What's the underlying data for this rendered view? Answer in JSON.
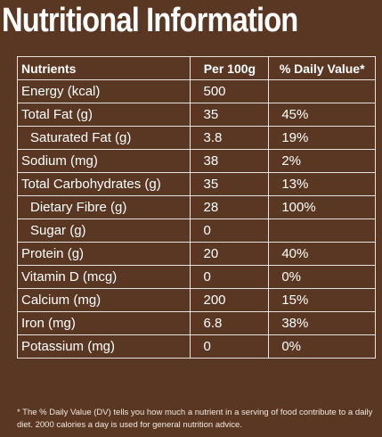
{
  "title": "Nutritional Information",
  "headers": {
    "nutrients": "Nutrients",
    "per100g": "Per 100g",
    "dv": "% Daily Value*"
  },
  "rows": [
    {
      "name": "Energy (kcal)",
      "per": "500",
      "dv": "",
      "sub": false
    },
    {
      "name": "Total Fat (g)",
      "per": "35",
      "dv": "45%",
      "sub": false
    },
    {
      "name": "Saturated Fat (g)",
      "per": "3.8",
      "dv": "19%",
      "sub": true
    },
    {
      "name": "Sodium (mg)",
      "per": "38",
      "dv": "2%",
      "sub": false
    },
    {
      "name": "Total Carbohydrates (g)",
      "per": "35",
      "dv": "13%",
      "sub": false
    },
    {
      "name": "Dietary Fibre (g)",
      "per": "28",
      "dv": "100%",
      "sub": true
    },
    {
      "name": "Sugar (g)",
      "per": "0",
      "dv": "",
      "sub": true
    },
    {
      "name": "Protein (g)",
      "per": "20",
      "dv": "40%",
      "sub": false
    },
    {
      "name": "Vitamin D (mcg)",
      "per": "0",
      "dv": "0%",
      "sub": false
    },
    {
      "name": "Calcium (mg)",
      "per": "200",
      "dv": "15%",
      "sub": false
    },
    {
      "name": "Iron (mg)",
      "per": "6.8",
      "dv": "38%",
      "sub": false
    },
    {
      "name": "Potassium (mg)",
      "per": "0",
      "dv": "0%",
      "sub": false
    }
  ],
  "footnote": "* The % Daily Value (DV) tells you how much a nutrient in a serving of food contribute to a daily diet. 2000 calories a day is used for general nutrition advice."
}
